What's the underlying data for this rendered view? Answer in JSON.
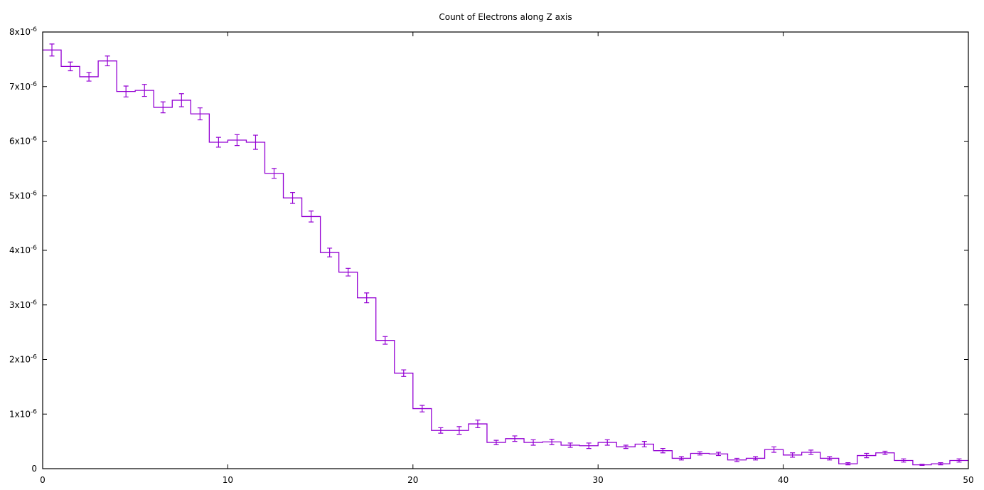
{
  "chart_data": {
    "type": "histogram-step",
    "title": "Count of Electrons along Z axis",
    "xlabel": "",
    "ylabel": "",
    "xlim": [
      0,
      50
    ],
    "ylim": [
      0,
      8e-06
    ],
    "x_ticks": [
      {
        "value": 0,
        "label": "0"
      },
      {
        "value": 10,
        "label": "10"
      },
      {
        "value": 20,
        "label": "20"
      },
      {
        "value": 30,
        "label": "30"
      },
      {
        "value": 40,
        "label": "40"
      },
      {
        "value": 50,
        "label": "50"
      }
    ],
    "y_ticks": [
      {
        "value": 0,
        "mantissa": "0",
        "exponent": ""
      },
      {
        "value": 1e-06,
        "mantissa": "1x10",
        "exponent": "-6"
      },
      {
        "value": 2e-06,
        "mantissa": "2x10",
        "exponent": "-6"
      },
      {
        "value": 3e-06,
        "mantissa": "3x10",
        "exponent": "-6"
      },
      {
        "value": 4e-06,
        "mantissa": "4x10",
        "exponent": "-6"
      },
      {
        "value": 5e-06,
        "mantissa": "5x10",
        "exponent": "-6"
      },
      {
        "value": 6e-06,
        "mantissa": "6x10",
        "exponent": "-6"
      },
      {
        "value": 7e-06,
        "mantissa": "7x10",
        "exponent": "-6"
      },
      {
        "value": 8e-06,
        "mantissa": "8x10",
        "exponent": "-6"
      }
    ],
    "grid": false,
    "legend": "none",
    "series_color": "#9400d3",
    "bin_width": 1,
    "bin_edges_start": 0,
    "values": [
      7.67e-06,
      7.37e-06,
      7.18e-06,
      7.47e-06,
      6.91e-06,
      6.93e-06,
      6.62e-06,
      6.75e-06,
      6.5e-06,
      5.98e-06,
      6.02e-06,
      5.98e-06,
      5.41e-06,
      4.96e-06,
      4.62e-06,
      3.96e-06,
      3.6e-06,
      3.13e-06,
      2.35e-06,
      1.75e-06,
      1.1e-06,
      7e-07,
      7e-07,
      8.2e-07,
      4.8e-07,
      5.5e-07,
      4.8e-07,
      4.9e-07,
      4.3e-07,
      4.2e-07,
      4.8e-07,
      4e-07,
      4.5e-07,
      3.3e-07,
      1.9e-07,
      2.8e-07,
      2.7e-07,
      1.6e-07,
      1.9e-07,
      3.5e-07,
      2.5e-07,
      3e-07,
      1.9e-07,
      9e-08,
      2.4e-07,
      2.9e-07,
      1.5e-07,
      7e-08,
      9e-08,
      1.5e-07
    ],
    "errors": [
      1.1e-07,
      8e-08,
      8e-08,
      9e-08,
      1e-07,
      1.1e-07,
      1e-07,
      1.2e-07,
      1.1e-07,
      9e-08,
      1e-07,
      1.3e-07,
      9e-08,
      1e-07,
      1e-07,
      8e-08,
      7e-08,
      9e-08,
      7e-08,
      6e-08,
      6e-08,
      5e-08,
      7e-08,
      7e-08,
      4e-08,
      5e-08,
      5e-08,
      5e-08,
      4e-08,
      5e-08,
      5e-08,
      3e-08,
      5e-08,
      4e-08,
      3e-08,
      3e-08,
      3e-08,
      3e-08,
      3e-08,
      5e-08,
      4e-08,
      4e-08,
      3e-08,
      2e-08,
      4e-08,
      3e-08,
      3e-08,
      1e-08,
      2e-08,
      3e-08
    ]
  }
}
